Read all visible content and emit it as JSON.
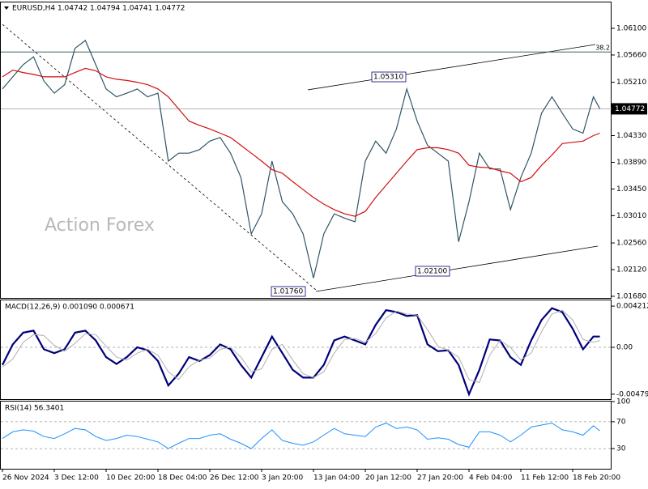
{
  "chart_data": [
    {
      "type": "line",
      "title": "EURUSD,H4  1.04742 1.04794 1.04741 1.04772",
      "watermark": "Action Forex",
      "x": [
        0,
        8,
        16,
        24,
        32,
        40,
        48,
        56,
        64,
        72,
        80,
        88,
        96,
        104,
        112,
        120,
        128,
        136,
        144,
        152,
        160,
        168,
        176,
        184,
        192,
        200,
        208,
        216,
        224,
        232,
        240,
        248,
        256,
        264,
        272,
        280,
        288,
        296,
        304,
        312,
        320,
        328,
        336,
        344,
        352,
        360,
        368,
        376,
        384,
        392,
        400,
        408,
        416,
        424,
        432,
        440,
        448,
        456,
        461
      ],
      "xlim": [
        0,
        470
      ],
      "xticks": [
        {
          "value": 0,
          "label": "26 Nov 2024"
        },
        {
          "value": 40,
          "label": "3 Dec 12:00"
        },
        {
          "value": 80,
          "label": "10 Dec 20:00"
        },
        {
          "value": 120,
          "label": "18 Dec 04:00"
        },
        {
          "value": 160,
          "label": "26 Dec 12:00"
        },
        {
          "value": 200,
          "label": "3 Jan 20:00"
        },
        {
          "value": 240,
          "label": "13 Jan 04:00"
        },
        {
          "value": 280,
          "label": "20 Jan 12:00"
        },
        {
          "value": 320,
          "label": "27 Jan 20:00"
        },
        {
          "value": 360,
          "label": "4 Feb 04:00"
        },
        {
          "value": 400,
          "label": "11 Feb 12:00"
        },
        {
          "value": 440,
          "label": "18 Feb 20:00"
        }
      ],
      "ylim": [
        1.01653,
        1.06527
      ],
      "yticks": [
        {
          "value": 1.061,
          "label": "1.06100"
        },
        {
          "value": 1.0566,
          "label": "1.05660"
        },
        {
          "value": 1.0521,
          "label": "1.05210"
        },
        {
          "value": 1.0433,
          "label": "1.04330"
        },
        {
          "value": 1.0389,
          "label": "1.03890"
        },
        {
          "value": 1.0345,
          "label": "1.03450"
        },
        {
          "value": 1.0301,
          "label": "1.03010"
        },
        {
          "value": 1.0256,
          "label": "1.02560"
        },
        {
          "value": 1.0212,
          "label": "1.02120"
        },
        {
          "value": 1.0168,
          "label": "1.01680"
        }
      ],
      "last_price": 1.04772,
      "fib_level": {
        "value": 1.0571,
        "label": "38.2"
      },
      "annotations": [
        "1.05310",
        "1.02100",
        "1.01760"
      ],
      "series": [
        {
          "color": "#2f5565",
          "values": [
            1.051,
            1.053,
            1.055,
            1.0563,
            1.0523,
            1.0503,
            1.0517,
            1.0577,
            1.059,
            1.055,
            1.051,
            1.0497,
            1.0503,
            1.051,
            1.0497,
            1.0503,
            1.0391,
            1.0404,
            1.0404,
            1.041,
            1.0424,
            1.043,
            1.0404,
            1.0364,
            1.0271,
            1.0304,
            1.0391,
            1.0324,
            1.0304,
            1.0271,
            1.0198,
            1.0271,
            1.0304,
            1.0297,
            1.0291,
            1.0391,
            1.0424,
            1.0404,
            1.0444,
            1.051,
            1.0457,
            1.0417,
            1.0404,
            1.0391,
            1.0258,
            1.0324,
            1.0404,
            1.0378,
            1.0378,
            1.0311,
            1.0364,
            1.0404,
            1.047,
            1.0497,
            1.047,
            1.0444,
            1.0437,
            1.0497,
            1.04772
          ]
        },
        {
          "color": "#d01010",
          "values": [
            1.053,
            1.0541,
            1.0537,
            1.0534,
            1.053,
            1.053,
            1.053,
            1.0537,
            1.0544,
            1.054,
            1.053,
            1.0526,
            1.0524,
            1.0521,
            1.0517,
            1.051,
            1.0497,
            1.0477,
            1.0457,
            1.045,
            1.0444,
            1.0437,
            1.043,
            1.0417,
            1.0404,
            1.0391,
            1.0377,
            1.0371,
            1.0357,
            1.0344,
            1.0331,
            1.032,
            1.0311,
            1.0304,
            1.03,
            1.0308,
            1.0331,
            1.0351,
            1.0371,
            1.0391,
            1.041,
            1.0413,
            1.0413,
            1.041,
            1.0404,
            1.0384,
            1.0381,
            1.038,
            1.0375,
            1.0371,
            1.0357,
            1.0364,
            1.0384,
            1.0401,
            1.042,
            1.0422,
            1.0424,
            1.0433,
            1.0437
          ]
        }
      ]
    },
    {
      "type": "line",
      "title": "MACD(12,26,9) 0.001090 0.000671",
      "ylim": [
        -0.0053,
        0.0048
      ],
      "yticks": [
        {
          "value": 0.004212,
          "label": "0.004212"
        },
        {
          "value": 0,
          "label": "0.00"
        },
        {
          "value": -0.004794,
          "label": "-0.004794"
        }
      ],
      "levels": [
        0
      ],
      "series": [
        {
          "color": "#00007a",
          "width": 2.2,
          "values": [
            -0.0018,
            0.0003,
            0.0015,
            0.0017,
            -0.0002,
            -0.0006,
            -0.0002,
            0.0015,
            0.0017,
            0.0007,
            -0.001,
            -0.0017,
            -0.001,
            0,
            -0.0003,
            -0.0014,
            -0.0039,
            -0.0027,
            -0.001,
            -0.0014,
            -0.0008,
            0.0003,
            -0.0002,
            -0.0018,
            -0.0031,
            -0.001,
            0.0011,
            -0.0006,
            -0.0023,
            -0.0031,
            -0.0031,
            -0.0018,
            0.0007,
            0.0011,
            0.0007,
            0.0003,
            0.0023,
            0.0038,
            0.0036,
            0.0032,
            0.0033,
            0.0003,
            -0.0004,
            -0.0003,
            -0.0018,
            -0.0048,
            -0.0023,
            0.0008,
            0.0007,
            -0.001,
            -0.0018,
            0.0007,
            0.0028,
            0.004,
            0.0036,
            0.0019,
            -0.0002,
            0.0011,
            0.0011
          ]
        },
        {
          "color": "#b0b0b0",
          "width": 1,
          "values": [
            -0.002,
            -0.0012,
            0.0005,
            0.0013,
            0.0012,
            0.0002,
            -0.0004,
            0.0004,
            0.0014,
            0.0013,
            0.0001,
            -0.001,
            -0.0013,
            -0.0006,
            -0.0002,
            -0.0008,
            -0.0025,
            -0.0033,
            -0.002,
            -0.0013,
            -0.0011,
            -0.0002,
            0.0,
            -0.001,
            -0.0025,
            -0.0022,
            -0.0002,
            0.0003,
            -0.0013,
            -0.0027,
            -0.0031,
            -0.0025,
            -0.0006,
            0.0008,
            0.0009,
            0.0005,
            0.0014,
            0.003,
            0.0037,
            0.0034,
            0.0033,
            0.0018,
            0.0001,
            -0.0003,
            -0.001,
            -0.0033,
            -0.0036,
            -0.0008,
            0.0007,
            0.0,
            -0.0013,
            -0.0006,
            0.0016,
            0.0034,
            0.0038,
            0.0028,
            0.0008,
            0.0005,
            0.0007
          ]
        }
      ]
    },
    {
      "type": "line",
      "title": "RSI(14) 56.3401",
      "ylim": [
        0,
        100
      ],
      "yticks": [
        100,
        70,
        30
      ],
      "levels": [
        70,
        30
      ],
      "series": [
        {
          "color": "#1e90ff",
          "width": 1,
          "values": [
            45,
            55,
            58,
            56,
            48,
            45,
            52,
            60,
            58,
            48,
            42,
            45,
            50,
            48,
            44,
            40,
            30,
            38,
            45,
            45,
            50,
            52,
            44,
            38,
            30,
            45,
            58,
            42,
            38,
            35,
            40,
            50,
            60,
            52,
            50,
            48,
            62,
            68,
            60,
            62,
            58,
            44,
            46,
            44,
            36,
            32,
            55,
            55,
            50,
            40,
            50,
            62,
            65,
            68,
            58,
            55,
            50,
            64,
            56.3401
          ]
        }
      ]
    }
  ]
}
